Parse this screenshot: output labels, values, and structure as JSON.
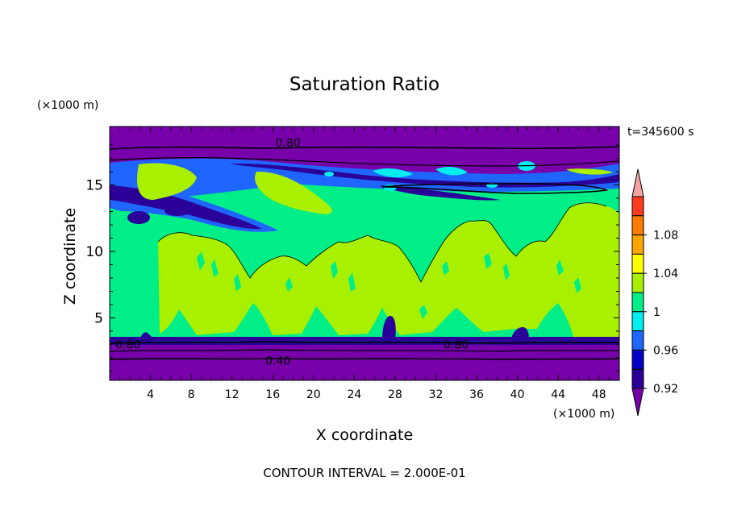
{
  "chart_data": {
    "type": "contour",
    "title": "Saturation Ratio",
    "xlabel": "X coordinate",
    "ylabel": "Z coordinate",
    "x_units": "(×1000 m)",
    "y_units": "(×1000 m)",
    "time_label": "t=345600 s",
    "footer": "CONTOUR INTERVAL = 2.000E-01",
    "xlim": [
      0,
      50
    ],
    "ylim": [
      0.3,
      19.4
    ],
    "xticks": [
      4,
      8,
      12,
      16,
      20,
      24,
      28,
      32,
      36,
      40,
      44,
      48
    ],
    "yticks": [
      5,
      10,
      15
    ],
    "contour_labels": [
      {
        "text": "0.80",
        "x": 17.5,
        "z": 18.2
      },
      {
        "text": "0.80",
        "x": 1.8,
        "z": 3.0
      },
      {
        "text": "0.80",
        "x": 34.0,
        "z": 3.0
      },
      {
        "text": "0.40",
        "x": 16.5,
        "z": 1.8
      }
    ],
    "colorbar": {
      "labels": [
        "1.08",
        "1.04",
        "1",
        "0.96",
        "0.92"
      ],
      "bins": [
        {
          "color": "#f5a3a3",
          "kind": "over"
        },
        {
          "color": "#ff3b1f"
        },
        {
          "color": "#ff7a00"
        },
        {
          "color": "#ffa500"
        },
        {
          "color": "#ffff00"
        },
        {
          "color": "#a8f000"
        },
        {
          "color": "#00ee88"
        },
        {
          "color": "#00eeee"
        },
        {
          "color": "#1e66ff"
        },
        {
          "color": "#0000c8"
        },
        {
          "color": "#2a0099"
        },
        {
          "color": "#7700aa",
          "kind": "under"
        }
      ]
    },
    "colors": {
      "dry": "#7700aa",
      "low": "#2a0099",
      "mid": "#1e66ff",
      "cyan": "#00eeee",
      "green": "#00ee88",
      "lime": "#a8f000"
    }
  }
}
